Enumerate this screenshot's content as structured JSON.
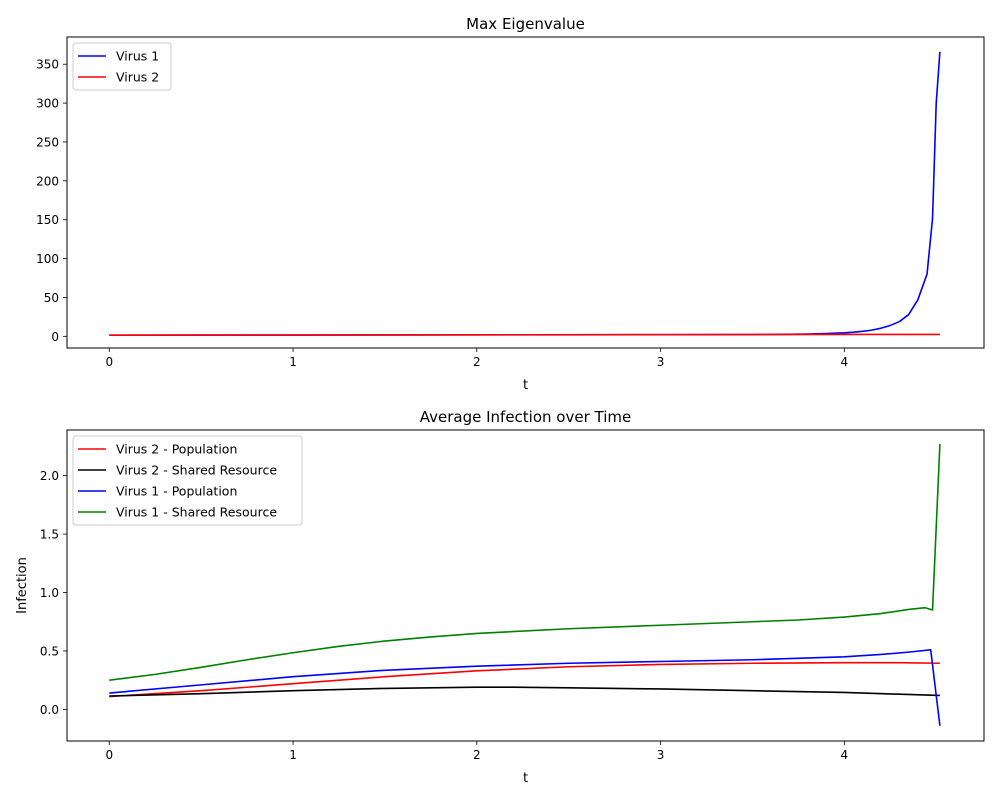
{
  "chart_data": [
    {
      "type": "line",
      "title": "Max Eigenvalue",
      "xlabel": "t",
      "ylabel": "",
      "xlim": [
        -0.23,
        4.76
      ],
      "ylim": [
        -15,
        385
      ],
      "xticks": [
        0,
        1,
        2,
        3,
        4
      ],
      "yticks": [
        0,
        50,
        100,
        150,
        200,
        250,
        300,
        350
      ],
      "grid": false,
      "legend": "top-left",
      "series": [
        {
          "name": "Virus 1",
          "color": "#0000ff",
          "x": [
            0,
            0.5,
            1,
            1.5,
            2,
            2.5,
            3,
            3.5,
            3.7,
            3.8,
            3.9,
            4.0,
            4.05,
            4.1,
            4.15,
            4.2,
            4.25,
            4.3,
            4.35,
            4.4,
            4.45,
            4.48,
            4.5,
            4.52
          ],
          "y": [
            1.5,
            1.6,
            1.7,
            1.8,
            1.9,
            2.0,
            2.1,
            2.3,
            2.6,
            3.0,
            3.6,
            4.5,
            5.3,
            6.5,
            8.0,
            10.5,
            14,
            19,
            28,
            47,
            80,
            152,
            300,
            366
          ]
        },
        {
          "name": "Virus 2",
          "color": "#ff0000",
          "x": [
            0,
            1,
            2,
            3,
            4,
            4.52
          ],
          "y": [
            1.5,
            1.7,
            2.0,
            2.2,
            2.4,
            2.5
          ]
        }
      ]
    },
    {
      "type": "line",
      "title": "Average Infection over Time",
      "xlabel": "t",
      "ylabel": "Infection",
      "xlim": [
        -0.23,
        4.76
      ],
      "ylim": [
        -0.27,
        2.39
      ],
      "xticks": [
        0,
        1,
        2,
        3,
        4
      ],
      "yticks": [
        0.0,
        0.5,
        1.0,
        1.5,
        2.0
      ],
      "grid": false,
      "legend": "top-left",
      "series": [
        {
          "name": "Virus 2 - Population",
          "color": "#ff0000",
          "x": [
            0,
            0.5,
            1,
            1.5,
            2,
            2.5,
            3,
            3.5,
            4,
            4.3,
            4.52
          ],
          "y": [
            0.11,
            0.16,
            0.22,
            0.28,
            0.33,
            0.365,
            0.385,
            0.395,
            0.4,
            0.4,
            0.395
          ]
        },
        {
          "name": "Virus 2 - Shared Resource",
          "color": "#000000",
          "x": [
            0,
            0.5,
            1,
            1.5,
            2,
            2.2,
            2.5,
            3,
            3.5,
            4,
            4.3,
            4.52
          ],
          "y": [
            0.115,
            0.135,
            0.16,
            0.18,
            0.19,
            0.19,
            0.185,
            0.175,
            0.16,
            0.145,
            0.13,
            0.12
          ]
        },
        {
          "name": "Virus 1 - Population",
          "color": "#0000ff",
          "x": [
            0,
            0.5,
            1,
            1.5,
            2,
            2.5,
            3,
            3.5,
            4,
            4.2,
            4.35,
            4.47,
            4.52
          ],
          "y": [
            0.14,
            0.21,
            0.28,
            0.335,
            0.37,
            0.395,
            0.41,
            0.425,
            0.45,
            0.47,
            0.49,
            0.51,
            -0.14
          ]
        },
        {
          "name": "Virus 1 - Shared Resource",
          "color": "#008000",
          "x": [
            0,
            0.25,
            0.5,
            0.75,
            1,
            1.25,
            1.5,
            1.75,
            2,
            2.5,
            3,
            3.5,
            3.75,
            4,
            4.2,
            4.35,
            4.44,
            4.48,
            4.52
          ],
          "y": [
            0.25,
            0.3,
            0.36,
            0.425,
            0.485,
            0.54,
            0.585,
            0.62,
            0.65,
            0.69,
            0.72,
            0.75,
            0.765,
            0.79,
            0.82,
            0.855,
            0.87,
            0.85,
            2.27
          ]
        }
      ]
    }
  ]
}
